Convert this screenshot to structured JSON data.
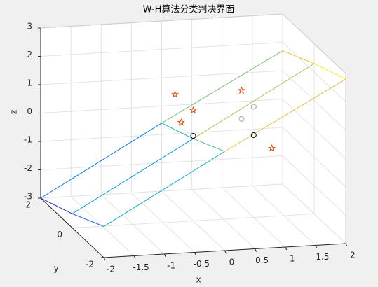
{
  "chart_data": {
    "type": "scatter3d",
    "title": "W-H算法分类判决界面",
    "xlabel": "x",
    "ylabel": "y",
    "zlabel": "z",
    "xlim": [
      -2,
      2
    ],
    "ylim": [
      -2,
      2
    ],
    "zlim": [
      -3,
      3
    ],
    "xticks": [
      -2,
      -1.5,
      -1,
      -0.5,
      0,
      0.5,
      1,
      1.5,
      2
    ],
    "yticks": [
      -2,
      0,
      2
    ],
    "zticks": [
      -3,
      -2,
      -1,
      0,
      1,
      2,
      3
    ],
    "grid": true,
    "surface": {
      "x": [
        -2,
        0,
        2
      ],
      "y": [
        -2,
        0,
        2
      ],
      "z": [
        [
          -1.9,
          0.5,
          2.8
        ],
        [
          -2.5,
          -0.1,
          2.3
        ],
        [
          -3,
          -0.6,
          1.7
        ]
      ]
    },
    "series": [
      {
        "marker": "star",
        "color": "#d95319",
        "x": [
          -0.3,
          0,
          -0.2,
          0.8,
          1.3
        ],
        "y": [
          0,
          0,
          0,
          0,
          0
        ],
        "z": [
          1.5,
          0.9,
          0.5,
          1.5,
          -0.6
        ]
      },
      {
        "marker": "circle",
        "colors": [
          "#000000",
          "#000000",
          "#a0a0a0",
          "#a0a0a0"
        ],
        "x": [
          0,
          1,
          1,
          0.8
        ],
        "y": [
          0,
          0,
          0,
          0
        ],
        "z": [
          0,
          -0.1,
          0.9,
          0.5
        ]
      }
    ]
  }
}
